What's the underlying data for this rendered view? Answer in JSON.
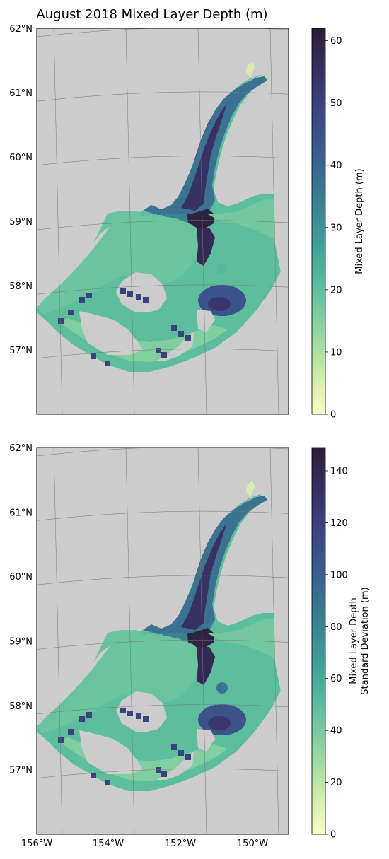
{
  "title": "August 2018 Mixed Layer Depth (m)",
  "colormap": {
    "stops": [
      "#fdfbc4",
      "#c8eaa6",
      "#8ed4a1",
      "#5bbd9d",
      "#3f9e98",
      "#3b7f92",
      "#3a5f8f",
      "#3c4584",
      "#372f62",
      "#2a1e35"
    ]
  },
  "land_color": "#cccccc",
  "panels": [
    {
      "name": "mean",
      "lat_labels": [
        "62°N",
        "61°N",
        "60°N",
        "59°N",
        "58°N",
        "57°N"
      ],
      "lon_labels": [],
      "colorbar": {
        "label_lines": [
          "Mixed Layer Depth (m)"
        ],
        "min": 0,
        "max": 62,
        "ticks": [
          0,
          10,
          20,
          30,
          40,
          50,
          60
        ]
      }
    },
    {
      "name": "std",
      "lat_labels": [
        "62°N",
        "61°N",
        "60°N",
        "59°N",
        "58°N",
        "57°N"
      ],
      "lon_labels": [
        "156°W",
        "154°W",
        "152°W",
        "150°W"
      ],
      "colorbar": {
        "label_lines": [
          "Mixed Layer Depth",
          "Standard Deviation (m)"
        ],
        "min": 0,
        "max": 149,
        "ticks": [
          0,
          20,
          40,
          60,
          80,
          100,
          120,
          140
        ]
      }
    }
  ]
}
